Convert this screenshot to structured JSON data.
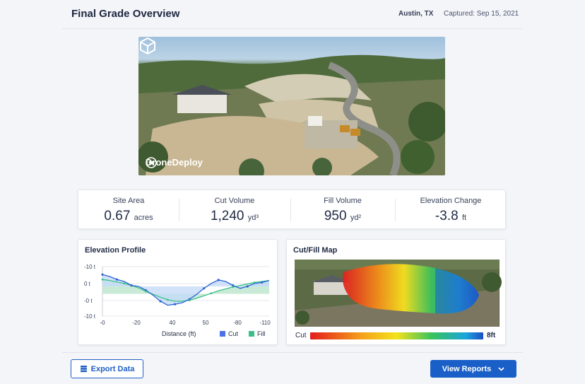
{
  "header": {
    "title": "Final Grade Overview",
    "location": "Austin, TX",
    "captured": "Captured: Sep 15, 2021"
  },
  "hero": {
    "brand": "DroneDeploy",
    "brand_icon": "cube-icon"
  },
  "stats": [
    {
      "label": "Site Area",
      "value": "0.67",
      "unit": "acres"
    },
    {
      "label": "Cut Volume",
      "value": "1,240",
      "unit": "yd³"
    },
    {
      "label": "Fill Volume",
      "value": "950",
      "unit": "yd²"
    },
    {
      "label": "Elevation Change",
      "value": "-3.8",
      "unit": "ft"
    }
  ],
  "elevation": {
    "title": "Elevation Profile",
    "xlabel": "Distance (ft)",
    "legend": [
      {
        "name": "Cut",
        "color": "#4a72e6"
      },
      {
        "name": "Fill",
        "color": "#3bbf8a"
      }
    ]
  },
  "cutfill": {
    "title": "Cut/Fill Map",
    "scale_min": "Cut",
    "scale_max": "8ft"
  },
  "footer": {
    "export_label": "Export Data",
    "view_label": "View Reports"
  },
  "chart_data": {
    "type": "line",
    "ytick_labels": [
      "-10 t",
      "0 t",
      "-0 t",
      "-10 t"
    ],
    "xtick_labels": [
      "-0",
      "-20",
      "40",
      "50",
      "-80",
      "-110"
    ],
    "xlabel": "Distance (ft)",
    "ylabel": "",
    "series": [
      {
        "name": "Cut",
        "values": [
          2.4,
          2.0,
          1.4,
          1.0,
          0.2,
          0.0,
          -0.8,
          -1.8,
          -3.0,
          -3.8,
          -3.6,
          -3.3,
          -2.6,
          -1.6,
          -0.4,
          0.6,
          1.3,
          1.0,
          0.2,
          -0.4,
          0.0,
          0.6,
          0.8,
          1.2
        ]
      },
      {
        "name": "Fill",
        "values": [
          1.4,
          1.2,
          0.9,
          0.6,
          0.2,
          -0.3,
          -1.0,
          -1.6,
          -2.2,
          -2.7,
          -3.0,
          -3.0,
          -2.8,
          -2.4,
          -1.9,
          -1.4,
          -0.9,
          -0.5,
          -0.1,
          0.2,
          0.5,
          0.8,
          1.0,
          1.2
        ]
      }
    ],
    "ylim": [
      -6,
      4
    ],
    "grid": true,
    "legend": "bottom-right"
  }
}
